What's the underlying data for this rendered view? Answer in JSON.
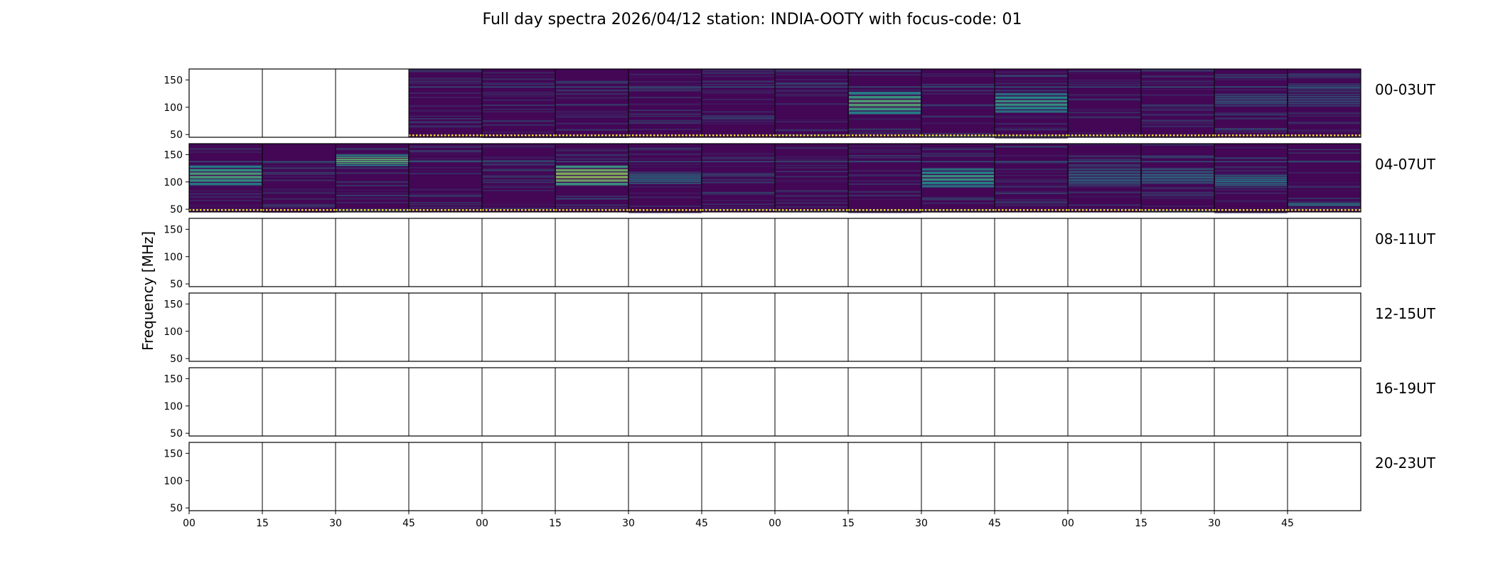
{
  "chart_data": {
    "type": "heatmap",
    "title": "Full day spectra 2026/04/12 station: INDIA-OOTY with focus-code: 01",
    "ylabel": "Frequency [MHz]",
    "xlabel": "",
    "ylim": [
      45,
      170
    ],
    "yticks": [
      50,
      100,
      150
    ],
    "xtick_labels": [
      "00",
      "15",
      "30",
      "45",
      "00",
      "15",
      "30",
      "45",
      "00",
      "15",
      "30",
      "45",
      "00",
      "15",
      "30",
      "45"
    ],
    "colormap": "viridis",
    "colors": {
      "low": "#440154",
      "mid": "#21918c",
      "high": "#fde725",
      "frame": "#000000"
    },
    "grid": false,
    "panels_per_row": 16,
    "panel_minutes": 15,
    "rows": [
      {
        "label": "00-03UT",
        "has_data": [
          false,
          false,
          false,
          true,
          true,
          true,
          true,
          true,
          true,
          true,
          true,
          true,
          true,
          true,
          true,
          true
        ],
        "bands": [
          {
            "panels": [
              9
            ],
            "freq": [
              85,
              128
            ],
            "intensity": 0.62
          },
          {
            "panels": [
              11
            ],
            "freq": [
              88,
              126
            ],
            "intensity": 0.55
          },
          {
            "panels": [
              14,
              15
            ],
            "freq": [
              100,
              125
            ],
            "intensity": 0.28
          }
        ]
      },
      {
        "label": "04-07UT",
        "has_data": [
          true,
          true,
          true,
          true,
          true,
          true,
          true,
          true,
          true,
          true,
          true,
          true,
          true,
          true,
          true,
          true
        ],
        "bands": [
          {
            "panels": [
              0
            ],
            "freq": [
              92,
              130
            ],
            "intensity": 0.6
          },
          {
            "panels": [
              2
            ],
            "freq": [
              128,
              150
            ],
            "intensity": 0.65
          },
          {
            "panels": [
              5
            ],
            "freq": [
              92,
              130
            ],
            "intensity": 0.75
          },
          {
            "panels": [
              6
            ],
            "freq": [
              95,
              115
            ],
            "intensity": 0.4
          },
          {
            "panels": [
              10
            ],
            "freq": [
              88,
              125
            ],
            "intensity": 0.55
          },
          {
            "panels": [
              12,
              13
            ],
            "freq": [
              95,
              125
            ],
            "intensity": 0.35
          },
          {
            "panels": [
              14
            ],
            "freq": [
              92,
              112
            ],
            "intensity": 0.45
          },
          {
            "panels": [
              15
            ],
            "freq": [
              55,
              62
            ],
            "intensity": 0.45
          }
        ]
      },
      {
        "label": "08-11UT",
        "has_data": [
          false,
          false,
          false,
          false,
          false,
          false,
          false,
          false,
          false,
          false,
          false,
          false,
          false,
          false,
          false,
          false
        ],
        "bands": []
      },
      {
        "label": "12-15UT",
        "has_data": [
          false,
          false,
          false,
          false,
          false,
          false,
          false,
          false,
          false,
          false,
          false,
          false,
          false,
          false,
          false,
          false
        ],
        "bands": []
      },
      {
        "label": "16-19UT",
        "has_data": [
          false,
          false,
          false,
          false,
          false,
          false,
          false,
          false,
          false,
          false,
          false,
          false,
          false,
          false,
          false,
          false
        ],
        "bands": []
      },
      {
        "label": "20-23UT",
        "has_data": [
          false,
          false,
          false,
          false,
          false,
          false,
          false,
          false,
          false,
          false,
          false,
          false,
          false,
          false,
          false,
          false
        ],
        "bands": []
      }
    ]
  }
}
